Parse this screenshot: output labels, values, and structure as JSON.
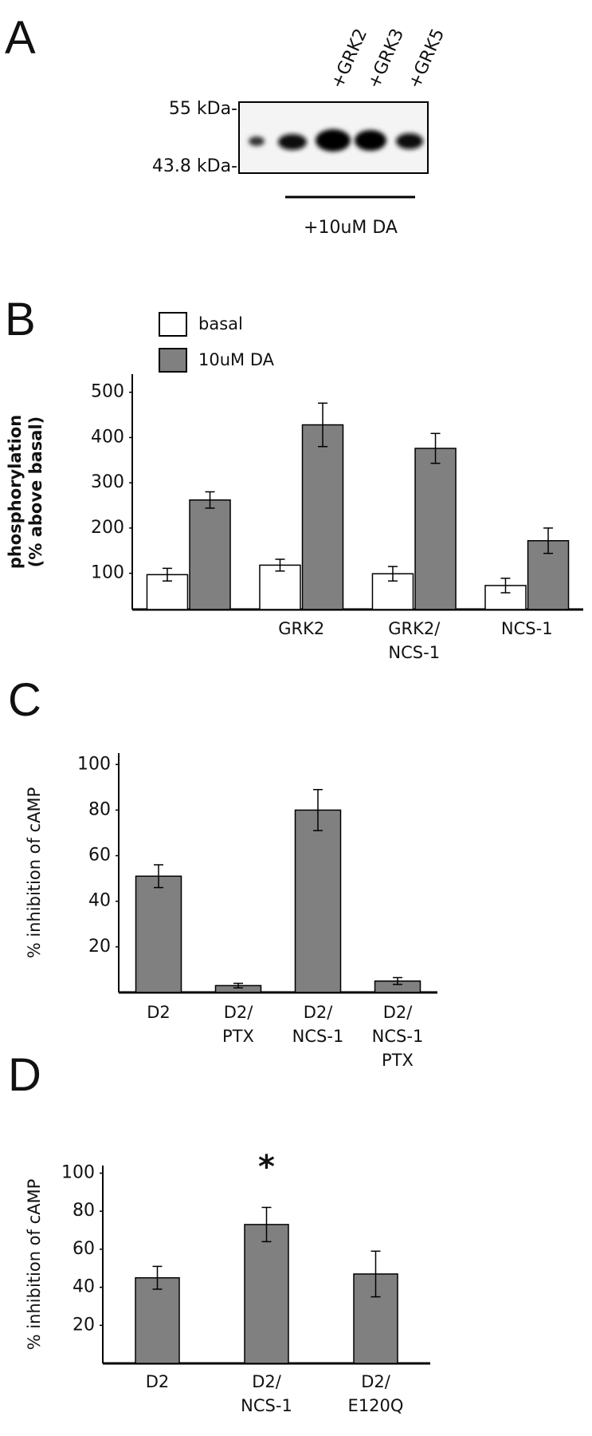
{
  "chart_data": [
    {
      "type": "blot",
      "panel_label": "A",
      "lanes": [
        "+GRK2",
        "+GRK3",
        "+GRK5"
      ],
      "markers": [
        "55 kDa-",
        "43.8 kDa-"
      ],
      "treatment": "+10uM DA"
    },
    {
      "type": "bar",
      "panel_label": "B",
      "ylabel": "phosphorylation\n(% above basal)",
      "categories": [
        null,
        "GRK2",
        "GRK2/\nNCS-1",
        "NCS-1"
      ],
      "series": [
        {
          "name": "basal",
          "color": "#ffffff",
          "values": [
            97,
            118,
            99,
            73
          ],
          "errors": [
            14,
            13,
            16,
            16
          ]
        },
        {
          "name": "10uM DA",
          "color": "#808080",
          "values": [
            262,
            428,
            376,
            172
          ],
          "errors": [
            18,
            48,
            33,
            28
          ]
        }
      ],
      "ylim": [
        20,
        540
      ],
      "yticks": [
        100,
        200,
        300,
        400,
        500
      ],
      "legend": "top-left"
    },
    {
      "type": "bar",
      "panel_label": "C",
      "ylabel": "% inhibition of cAMP",
      "categories": [
        "D2",
        "D2/\nPTX",
        "D2/\nNCS-1",
        "D2/\nNCS-1\nPTX"
      ],
      "series": [
        {
          "color": "#808080",
          "values": [
            51,
            3,
            80,
            5
          ],
          "errors": [
            5,
            1,
            9,
            1.5
          ]
        }
      ],
      "ylim": [
        0,
        105
      ],
      "yticks": [
        20,
        40,
        60,
        80,
        100
      ]
    },
    {
      "type": "bar",
      "panel_label": "D",
      "ylabel": "% inhibition of cAMP",
      "categories": [
        "D2",
        "D2/\nNCS-1",
        "D2/\nE120Q"
      ],
      "series": [
        {
          "color": "#808080",
          "values": [
            45,
            73,
            47
          ],
          "errors": [
            6,
            9,
            12
          ]
        }
      ],
      "ylim": [
        0,
        104
      ],
      "yticks": [
        20,
        40,
        60,
        80,
        100
      ],
      "annotations": [
        "*"
      ]
    }
  ]
}
